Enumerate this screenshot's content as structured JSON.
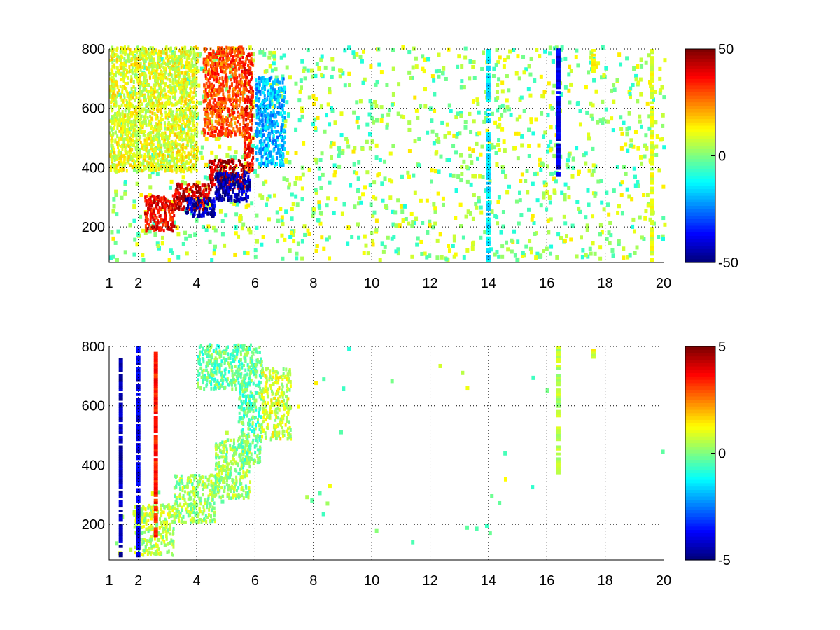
{
  "chart_data": [
    {
      "type": "heatmap",
      "title": "",
      "xlabel": "",
      "ylabel": "",
      "xlim": [
        1,
        20
      ],
      "ylim": [
        80,
        800
      ],
      "xticks": [
        1,
        2,
        4,
        6,
        8,
        10,
        12,
        14,
        16,
        18,
        20
      ],
      "yticks": [
        200,
        400,
        600,
        800
      ],
      "grid": true,
      "colormap": "jet",
      "colorbar": {
        "min": -50,
        "max": 50,
        "ticks": [
          50,
          0,
          -50
        ]
      },
      "features": [
        {
          "kind": "band",
          "x0": 2.2,
          "x1": 3.2,
          "y0": 180,
          "y1": 300,
          "value": 38
        },
        {
          "kind": "band",
          "x0": 3.2,
          "x1": 4.4,
          "y0": 250,
          "y1": 340,
          "value": 42
        },
        {
          "kind": "band",
          "x0": 4.4,
          "x1": 5.6,
          "y0": 320,
          "y1": 420,
          "value": 44
        },
        {
          "kind": "band",
          "x0": 3.6,
          "x1": 4.6,
          "y0": 230,
          "y1": 290,
          "value": -44
        },
        {
          "kind": "band",
          "x0": 4.6,
          "x1": 5.8,
          "y0": 280,
          "y1": 380,
          "value": -46
        },
        {
          "kind": "band",
          "x0": 4.2,
          "x1": 5.6,
          "y0": 500,
          "y1": 800,
          "value": 30
        },
        {
          "kind": "band",
          "x0": 5.6,
          "x1": 5.9,
          "y0": 380,
          "y1": 780,
          "value": 35
        },
        {
          "kind": "band",
          "x0": 6.0,
          "x1": 7.0,
          "y0": 400,
          "y1": 700,
          "value": -20
        },
        {
          "kind": "band",
          "x0": 1.0,
          "x1": 4.0,
          "y0": 380,
          "y1": 800,
          "value": 10
        },
        {
          "kind": "column",
          "x": 16.4,
          "y0": 370,
          "y1": 800,
          "value": -40
        },
        {
          "kind": "column",
          "x": 14.0,
          "y0": 80,
          "y1": 800,
          "value": -15
        },
        {
          "kind": "column",
          "x": 17.6,
          "y0": 720,
          "y1": 800,
          "value": 15
        },
        {
          "kind": "column",
          "x": 19.6,
          "y0": 80,
          "y1": 800,
          "value": 10
        }
      ]
    },
    {
      "type": "heatmap",
      "title": "",
      "xlabel": "",
      "ylabel": "",
      "xlim": [
        1,
        20
      ],
      "ylim": [
        80,
        800
      ],
      "xticks": [
        1,
        2,
        4,
        6,
        8,
        10,
        12,
        14,
        16,
        18,
        20
      ],
      "yticks": [
        200,
        400,
        600,
        800
      ],
      "grid": true,
      "colormap": "jet",
      "colorbar": {
        "min": -5,
        "max": 5,
        "ticks": [
          5,
          0,
          -5
        ]
      },
      "features": [
        {
          "kind": "band",
          "x0": 1.8,
          "x1": 3.2,
          "y0": 90,
          "y1": 260,
          "value": 0.5
        },
        {
          "kind": "band",
          "x0": 3.2,
          "x1": 4.6,
          "y0": 200,
          "y1": 360,
          "value": 0.3
        },
        {
          "kind": "band",
          "x0": 4.6,
          "x1": 5.8,
          "y0": 280,
          "y1": 480,
          "value": 0.2
        },
        {
          "kind": "band",
          "x0": 5.4,
          "x1": 6.2,
          "y0": 400,
          "y1": 800,
          "value": -0.3
        },
        {
          "kind": "band",
          "x0": 4.0,
          "x1": 5.4,
          "y0": 650,
          "y1": 800,
          "value": -0.2
        },
        {
          "kind": "band",
          "x0": 6.2,
          "x1": 7.2,
          "y0": 480,
          "y1": 720,
          "value": 0.8
        },
        {
          "kind": "column",
          "x": 16.4,
          "y0": 370,
          "y1": 800,
          "value": 0.5
        },
        {
          "kind": "column",
          "x": 1.4,
          "y0": 90,
          "y1": 760,
          "value": -4.5
        },
        {
          "kind": "column",
          "x": 2.0,
          "y0": 90,
          "y1": 800,
          "value": -4.0
        },
        {
          "kind": "column",
          "x": 2.6,
          "y0": 150,
          "y1": 780,
          "value": 3.5
        },
        {
          "kind": "column",
          "x": 17.6,
          "y0": 760,
          "y1": 800,
          "value": 1.0
        }
      ]
    }
  ]
}
